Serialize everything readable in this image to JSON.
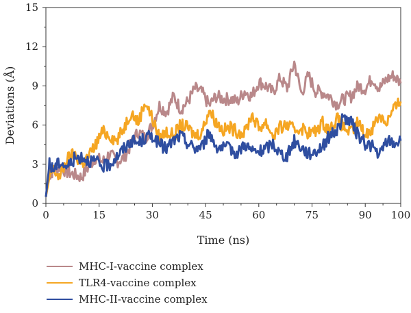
{
  "chart_data": {
    "type": "line",
    "title": "",
    "xlabel": "Time (ns)",
    "ylabel": "Deviations (Å)",
    "xlim": [
      0,
      100
    ],
    "ylim": [
      0,
      15
    ],
    "x_ticks": [
      "0",
      "15",
      "30",
      "45",
      "60",
      "75",
      "90",
      "100"
    ],
    "y_ticks": [
      "0",
      "3",
      "6",
      "9",
      "12",
      "15"
    ],
    "grid": false,
    "legend_position": "bottom-left",
    "series": [
      {
        "name": "MHC-I-vaccine complex",
        "color": "#b9888a",
        "x": [
          0,
          1,
          2,
          4,
          6,
          8,
          10,
          12,
          14,
          16,
          18,
          20,
          22,
          24,
          26,
          28,
          30,
          32,
          34,
          36,
          38,
          40,
          42,
          44,
          46,
          48,
          50,
          52,
          54,
          56,
          58,
          60,
          62,
          64,
          66,
          68,
          70,
          72,
          74,
          76,
          78,
          80,
          82,
          84,
          86,
          88,
          90,
          92,
          94,
          96,
          98,
          100
        ],
        "y": [
          0.5,
          2.2,
          2.5,
          2.8,
          2.4,
          2.2,
          2.0,
          2.8,
          3.5,
          3.2,
          3.8,
          3.2,
          3.5,
          4.5,
          5.5,
          5.0,
          6.0,
          7.5,
          7.0,
          8.2,
          7.2,
          7.8,
          8.8,
          8.5,
          7.5,
          8.2,
          8.0,
          8.0,
          7.8,
          8.6,
          8.2,
          9.3,
          9.0,
          8.5,
          9.6,
          8.8,
          10.8,
          8.4,
          9.8,
          8.6,
          8.5,
          8.2,
          7.6,
          8.0,
          8.2,
          9.0,
          8.8,
          9.6,
          8.8,
          9.5,
          9.8,
          9.2
        ]
      },
      {
        "name": "TLR4-vaccine complex",
        "color": "#f5a623",
        "x": [
          0,
          1,
          2,
          4,
          6,
          8,
          10,
          12,
          14,
          16,
          18,
          20,
          22,
          24,
          26,
          28,
          30,
          32,
          34,
          36,
          38,
          40,
          42,
          44,
          46,
          48,
          50,
          52,
          54,
          56,
          58,
          60,
          62,
          64,
          66,
          68,
          70,
          72,
          74,
          76,
          78,
          80,
          82,
          84,
          86,
          88,
          90,
          92,
          94,
          96,
          98,
          100
        ],
        "y": [
          0.5,
          2.0,
          2.6,
          2.0,
          3.4,
          3.8,
          3.0,
          3.6,
          4.5,
          5.5,
          5.2,
          4.8,
          5.8,
          7.0,
          6.2,
          7.8,
          6.5,
          5.0,
          5.5,
          5.2,
          6.0,
          5.8,
          5.2,
          5.5,
          7.2,
          6.2,
          5.6,
          5.8,
          5.5,
          5.4,
          6.8,
          5.8,
          6.2,
          5.2,
          5.8,
          6.0,
          5.6,
          5.8,
          5.4,
          5.5,
          6.2,
          5.6,
          6.5,
          5.8,
          5.4,
          6.2,
          5.2,
          5.8,
          6.8,
          6.2,
          7.2,
          7.8
        ]
      },
      {
        "name": "MHC-II-vaccine complex",
        "color": "#2f4ea0",
        "x": [
          0,
          1,
          2,
          4,
          6,
          8,
          10,
          12,
          14,
          16,
          18,
          20,
          22,
          24,
          26,
          28,
          30,
          32,
          34,
          36,
          38,
          40,
          42,
          44,
          46,
          48,
          50,
          52,
          54,
          56,
          58,
          60,
          62,
          64,
          66,
          68,
          70,
          72,
          74,
          76,
          78,
          80,
          82,
          84,
          86,
          88,
          90,
          92,
          94,
          96,
          98,
          100
        ],
        "y": [
          0.5,
          3.0,
          2.6,
          3.2,
          2.8,
          3.4,
          3.6,
          3.3,
          3.2,
          2.8,
          3.0,
          3.6,
          4.2,
          4.8,
          4.6,
          5.0,
          5.2,
          4.5,
          4.2,
          4.8,
          5.2,
          4.6,
          4.2,
          4.4,
          5.4,
          4.4,
          4.2,
          4.2,
          3.8,
          4.6,
          4.0,
          3.9,
          4.2,
          4.6,
          3.8,
          3.6,
          4.8,
          4.3,
          3.8,
          4.0,
          4.4,
          5.2,
          5.6,
          6.6,
          6.2,
          5.2,
          4.6,
          4.4,
          3.6,
          4.8,
          4.6,
          4.8
        ]
      }
    ]
  }
}
